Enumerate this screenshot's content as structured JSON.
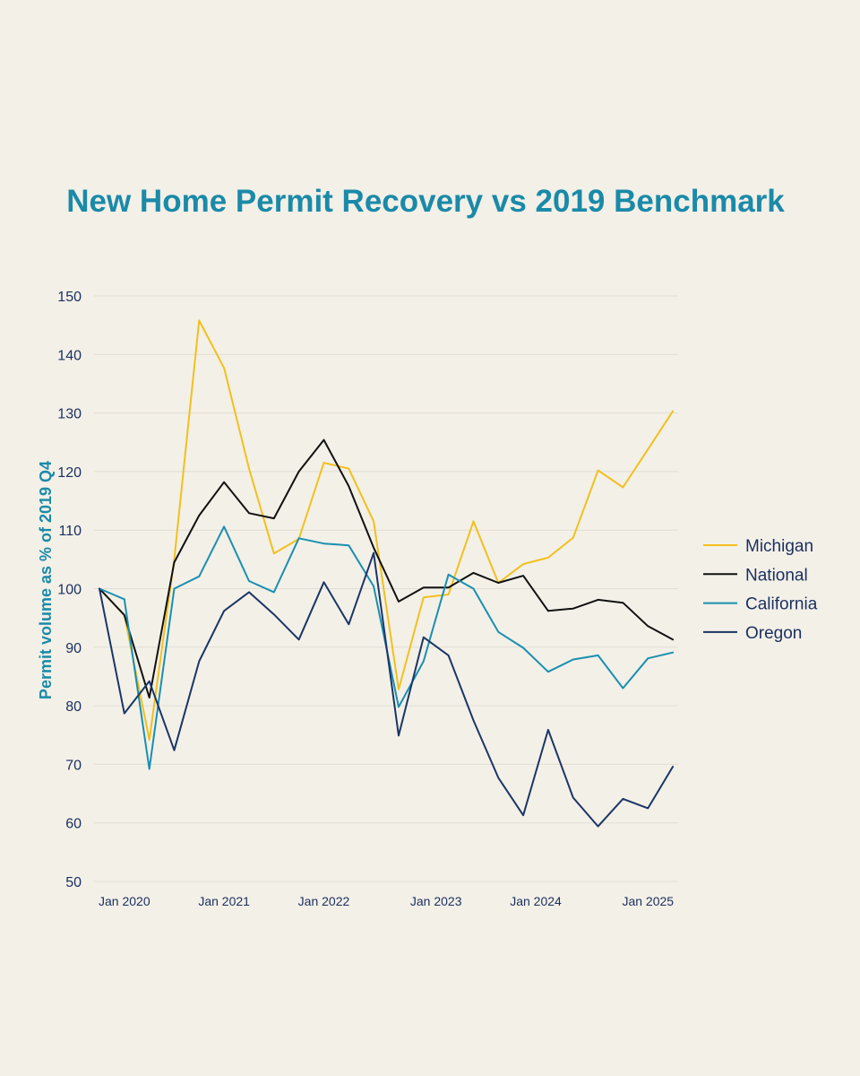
{
  "chart_data": {
    "type": "line",
    "title": "New Home Permit Recovery vs 2019 Benchmark",
    "xlabel": "",
    "ylabel": "Permit volume as % of 2019 Q4",
    "ylim": [
      50,
      150
    ],
    "yticks": [
      50,
      60,
      70,
      80,
      90,
      100,
      110,
      120,
      130,
      140,
      150
    ],
    "x": [
      "2019 Q4",
      "2020 Q1",
      "2020 Q2",
      "2020 Q3",
      "2020 Q4",
      "2021 Q1",
      "2021 Q2",
      "2021 Q3",
      "2021 Q4",
      "2022 Q1",
      "2022 Q2",
      "2022 Q3",
      "2022 Q4",
      "2023 Q1",
      "2023 Q2",
      "2023 Q3",
      "2023 Q4",
      "2024 Q1",
      "2024 Q2",
      "2024 Q3",
      "2024 Q4",
      "2025 Q1",
      "2025 Q2",
      "2025 Q3"
    ],
    "xticks": [
      {
        "label": "Jan 2020",
        "index": 1
      },
      {
        "label": "Jan 2021",
        "index": 5
      },
      {
        "label": "Jan 2022",
        "index": 9
      },
      {
        "label": "Jan 2023",
        "index": 13.5
      },
      {
        "label": "Jan 2024",
        "index": 17.5
      },
      {
        "label": "Jan 2025",
        "index": 22
      }
    ],
    "grid": true,
    "legend_position": "right",
    "series": [
      {
        "name": "Michigan",
        "color": "#f2c01d",
        "values": [
          100,
          95.5,
          74.2,
          105,
          145.8,
          137.7,
          120.5,
          106,
          108.5,
          121.5,
          120.5,
          111.5,
          82.8,
          98.5,
          99,
          111.5,
          101,
          104.2,
          105.3,
          108.7,
          120.2,
          117.3,
          123.8,
          130.3
        ]
      },
      {
        "name": "National",
        "color": "#111111",
        "values": [
          100,
          95.5,
          81.4,
          104.5,
          112.5,
          118.2,
          112.9,
          112,
          120,
          125.4,
          117.5,
          107,
          97.8,
          100.2,
          100.2,
          102.7,
          101,
          102.2,
          96.2,
          96.6,
          98.1,
          97.6,
          93.6,
          91.3
        ]
      },
      {
        "name": "California",
        "color": "#1a8fb0",
        "values": [
          100,
          98.2,
          69.2,
          100,
          102.1,
          110.6,
          101.3,
          99.4,
          108.6,
          107.7,
          107.4,
          100.4,
          79.8,
          87.6,
          102.4,
          100,
          92.6,
          89.9,
          85.8,
          87.9,
          88.6,
          83,
          88.1,
          89.1
        ]
      },
      {
        "name": "Oregon",
        "color": "#1b3566",
        "values": [
          100,
          78.7,
          84.2,
          72.4,
          87.6,
          96.2,
          99.4,
          95.6,
          91.3,
          101.1,
          93.9,
          106.1,
          74.9,
          91.7,
          88.6,
          77.5,
          67.7,
          61.3,
          75.9,
          64.3,
          59.4,
          64.1,
          62.5,
          69.6
        ]
      }
    ]
  }
}
